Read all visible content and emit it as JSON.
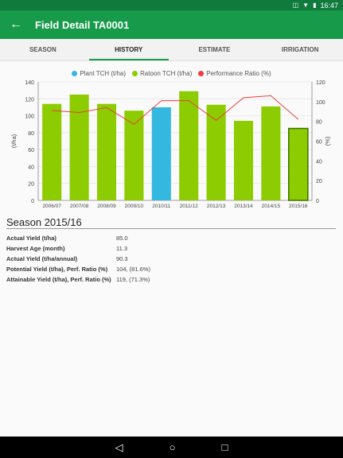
{
  "status_bar": {
    "time": "16:47"
  },
  "app_bar": {
    "title": "Field Detail TA0001"
  },
  "tabs": [
    {
      "label": "SEASON"
    },
    {
      "label": "HISTORY"
    },
    {
      "label": "ESTIMATE"
    },
    {
      "label": "IRRIGATION"
    }
  ],
  "colors": {
    "primary": "#179a4a",
    "status": "#0f7a3c",
    "plant": "#35b8e0",
    "ratoon": "#8ccc00",
    "ratio": "#e84040"
  },
  "chart_data": {
    "type": "bar",
    "categories": [
      "2006/07",
      "2007/08",
      "2008/09",
      "2009/10",
      "2010/11",
      "2011/12",
      "2012/13",
      "2013/14",
      "2014/15",
      "2015/16"
    ],
    "series": [
      {
        "name": "Plant TCH (t/ha)",
        "values": [
          null,
          null,
          null,
          null,
          110,
          null,
          null,
          null,
          null,
          null
        ]
      },
      {
        "name": "Ratoon TCH (t/ha)",
        "values": [
          114,
          125,
          114,
          106,
          null,
          129,
          113,
          94,
          111,
          85
        ]
      },
      {
        "name": "Performance Ratio (%)",
        "type": "line",
        "axis": "right",
        "values": [
          91,
          89,
          94,
          77,
          101,
          101,
          81,
          104,
          106,
          82
        ]
      }
    ],
    "ylabel": "(t/ha)",
    "y2label": "(%)",
    "ylim": [
      0,
      140
    ],
    "y2lim": [
      0,
      120
    ],
    "yticks": [
      0,
      20,
      40,
      60,
      80,
      100,
      120,
      140
    ],
    "y2ticks": [
      0,
      20,
      40,
      60,
      80,
      100,
      120
    ],
    "highlighted": "2015/16",
    "legend": "top"
  },
  "season": {
    "title": "Season 2015/16",
    "rows": [
      {
        "label": "Actual Yield (t/ha)",
        "value": "85.0"
      },
      {
        "label": "Harvest Age (month)",
        "value": "11.3"
      },
      {
        "label": "Actual Yield (t/ha/annual)",
        "value": "90.3"
      },
      {
        "label": "Potential Yield (t/ha), Perf. Ratio (%)",
        "value": "104, (81.6%)"
      },
      {
        "label": "Attainable Yield (t/ha), Perf. Ratio (%)",
        "value": "119, (71.3%)"
      }
    ]
  }
}
